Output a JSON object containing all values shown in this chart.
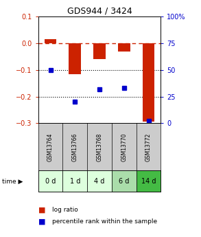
{
  "title": "GDS944 / 3424",
  "samples": [
    "GSM13764",
    "GSM13766",
    "GSM13768",
    "GSM13770",
    "GSM13772"
  ],
  "time_labels": [
    "0 d",
    "1 d",
    "4 d",
    "6 d",
    "14 d"
  ],
  "log_ratio": [
    0.015,
    -0.115,
    -0.06,
    -0.03,
    -0.295
  ],
  "percentile_rank": [
    50,
    20,
    32,
    33,
    2
  ],
  "ylim_left": [
    -0.3,
    0.1
  ],
  "ylim_right": [
    0,
    100
  ],
  "bar_color": "#cc2200",
  "dot_color": "#0000cc",
  "bg_color": "#ffffff",
  "plot_bg": "#ffffff",
  "grid_color": "#000000",
  "dashed_line_color": "#cc2200",
  "sample_bg": "#cccccc",
  "time_bg_colors": [
    "#ddffdd",
    "#ddffdd",
    "#ddffdd",
    "#aaddaa",
    "#44bb44"
  ],
  "legend_bar_label": "log ratio",
  "legend_dot_label": "percentile rank within the sample",
  "left_tick_color": "#cc2200",
  "right_tick_color": "#0000cc",
  "left_yticks": [
    0.1,
    0.0,
    -0.1,
    -0.2,
    -0.3
  ],
  "right_yticks": [
    100,
    75,
    50,
    25,
    0
  ],
  "right_ytick_labels": [
    "100%",
    "75",
    "50",
    "25",
    "0"
  ]
}
